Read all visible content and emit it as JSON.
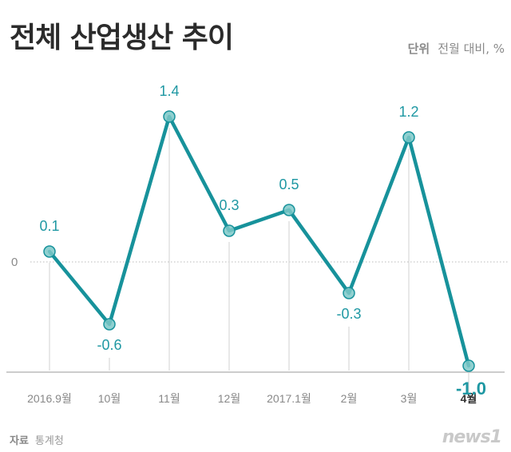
{
  "title": "전체 산업생산 추이",
  "unit": {
    "label": "단위",
    "value": "전월 대비, %"
  },
  "source": {
    "label": "자료",
    "value": "통계청"
  },
  "logo": "news1",
  "colors": {
    "line": "#17929b",
    "marker_fill": "#7cc8c8",
    "label": "#1f98a3",
    "axis": "#555555",
    "baseline": "#cccccc",
    "dropline": "#d9d9d9",
    "zero_line": "#bbbbbb"
  },
  "chart_data": {
    "type": "line",
    "title": "전체 산업생산 추이",
    "ylabel": "전월 대비, %",
    "categories": [
      "2016.9월",
      "10월",
      "11월",
      "12월",
      "2017.1월",
      "2월",
      "3월",
      "4월"
    ],
    "values": [
      0.1,
      -0.6,
      1.4,
      0.3,
      0.5,
      -0.3,
      1.2,
      -1.0
    ],
    "value_labels": [
      "0.1",
      "-0.6",
      "1.4",
      "0.3",
      "0.5",
      "-0.3",
      "1.2",
      "-1.0"
    ],
    "y_tick": "0",
    "ylim": [
      -1.2,
      1.6
    ],
    "highlight_index": 7
  }
}
